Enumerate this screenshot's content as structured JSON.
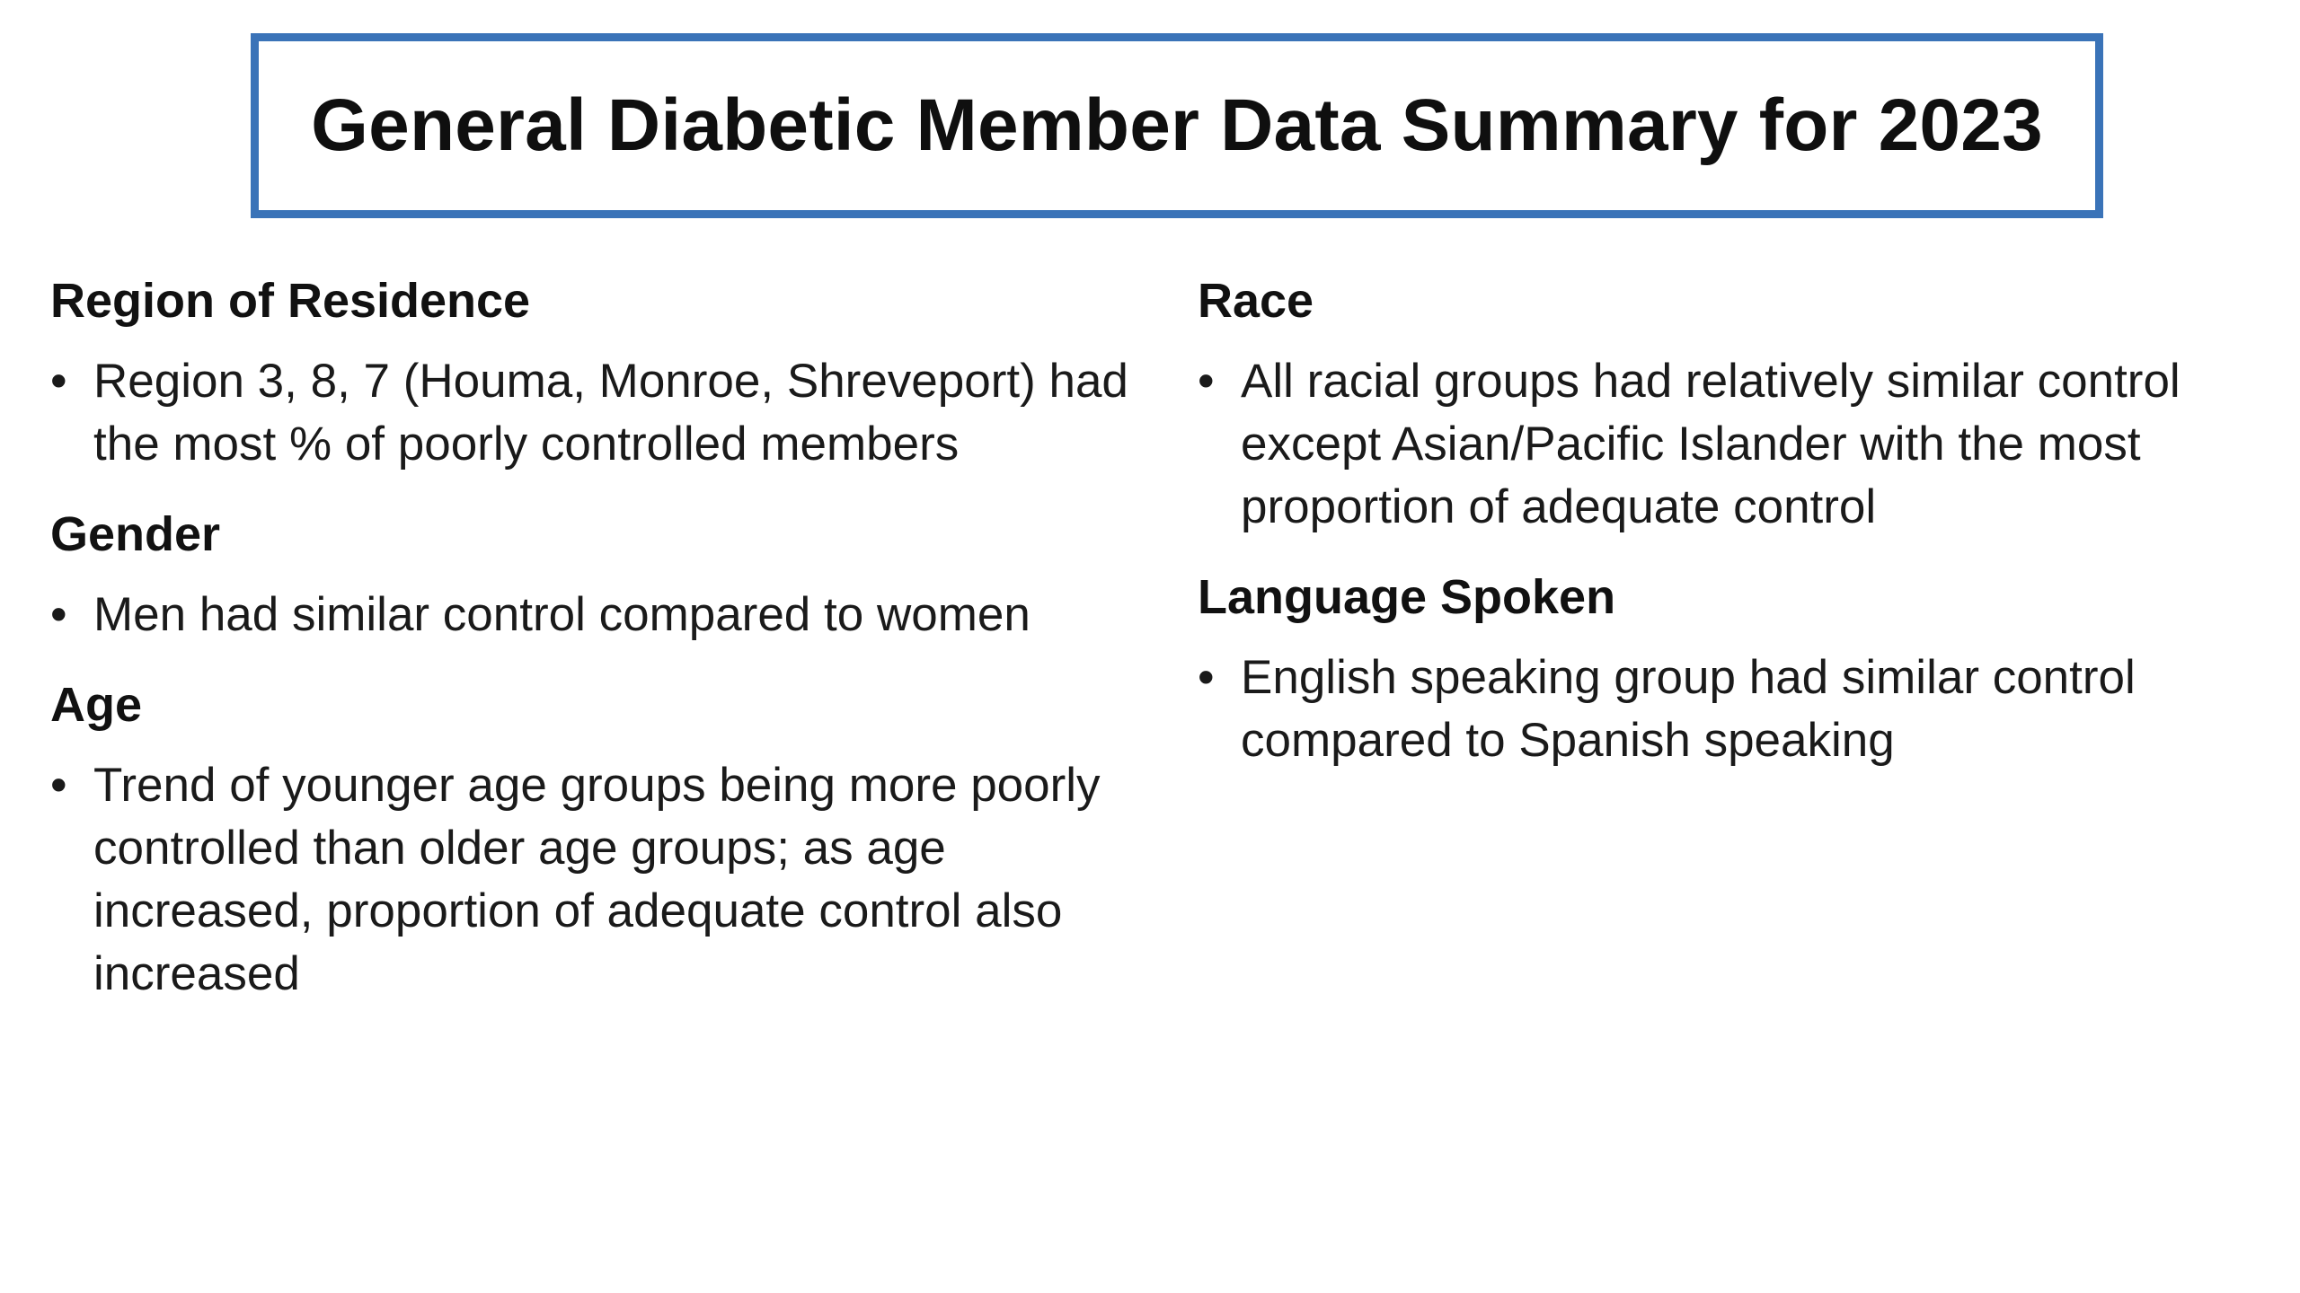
{
  "title": "General Diabetic Member Data Summary for 2023",
  "bullet_glyph": "•",
  "left_column": [
    {
      "heading": "Region of Residence",
      "bullets": [
        "Region 3, 8, 7 (Houma, Monroe, Shreveport) had the most % of poorly controlled members"
      ]
    },
    {
      "heading": "Gender",
      "bullets": [
        "Men had similar control compared to women"
      ]
    },
    {
      "heading": "Age",
      "bullets": [
        "Trend of younger age groups being more poorly controlled than older age groups; as age increased, proportion of adequate control also increased"
      ]
    }
  ],
  "right_column": [
    {
      "heading": "Race",
      "bullets": [
        "All racial groups had relatively similar control except Asian/Pacific Islander with the most proportion of adequate control"
      ]
    },
    {
      "heading": "Language Spoken",
      "bullets": [
        "English speaking group had similar control compared to Spanish speaking"
      ]
    }
  ],
  "colors": {
    "title_border": "#3a73b8",
    "text": "#111111",
    "background": "#ffffff"
  }
}
